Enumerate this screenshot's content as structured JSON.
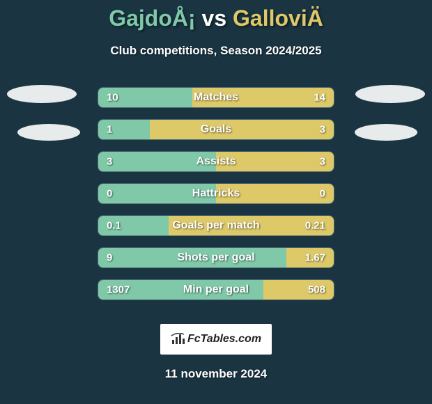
{
  "title": {
    "player_left": "GajdoÅ¡",
    "vs": "vs",
    "player_right": "GalloviÄ"
  },
  "subtitle": "Club competitions, Season 2024/2025",
  "colors": {
    "background": "#1a3442",
    "left_fill": "#7fc9a8",
    "right_fill": "#ddc968",
    "bar_bg": "#2b4a5a",
    "text": "#ffffff"
  },
  "stats": [
    {
      "label": "Matches",
      "left_val": "10",
      "right_val": "14",
      "left_pct": 40,
      "right_pct": 60
    },
    {
      "label": "Goals",
      "left_val": "1",
      "right_val": "3",
      "left_pct": 22,
      "right_pct": 78
    },
    {
      "label": "Assists",
      "left_val": "3",
      "right_val": "3",
      "left_pct": 50,
      "right_pct": 50
    },
    {
      "label": "Hattricks",
      "left_val": "0",
      "right_val": "0",
      "left_pct": 50,
      "right_pct": 50
    },
    {
      "label": "Goals per match",
      "left_val": "0.1",
      "right_val": "0.21",
      "left_pct": 30,
      "right_pct": 70
    },
    {
      "label": "Shots per goal",
      "left_val": "9",
      "right_val": "1.67",
      "left_pct": 80,
      "right_pct": 20
    },
    {
      "label": "Min per goal",
      "left_val": "1307",
      "right_val": "508",
      "left_pct": 70,
      "right_pct": 30
    }
  ],
  "logo": {
    "text": "FcTables.com"
  },
  "date": "11 november 2024"
}
